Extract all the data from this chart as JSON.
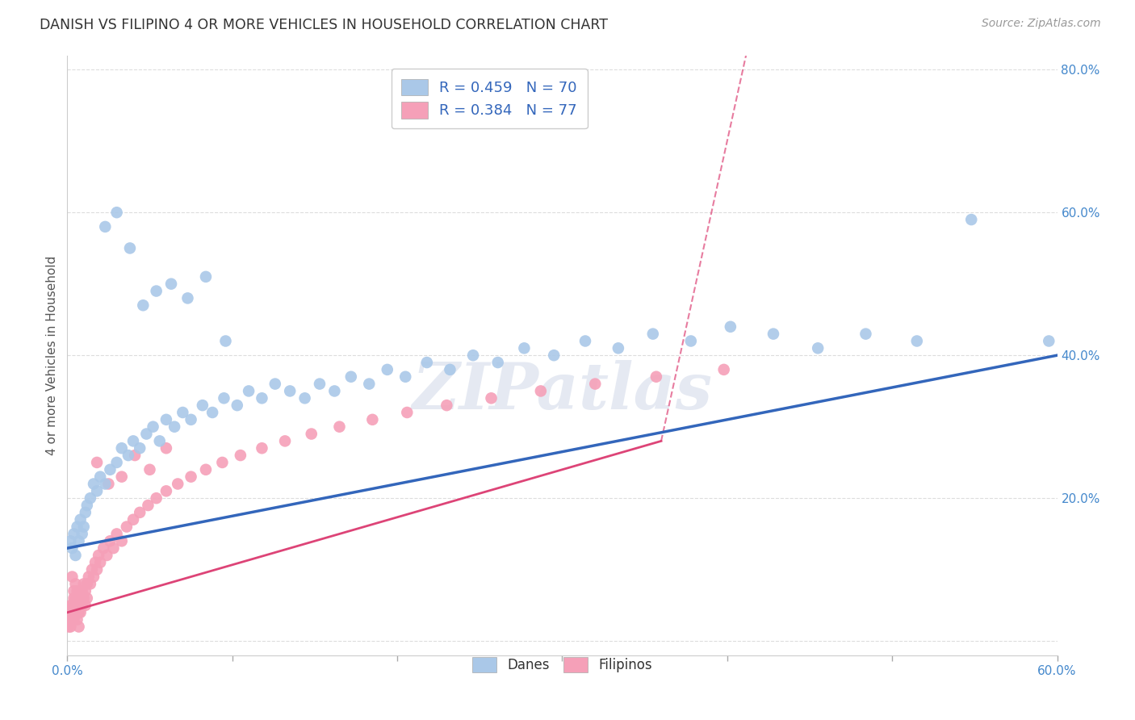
{
  "title": "DANISH VS FILIPINO 4 OR MORE VEHICLES IN HOUSEHOLD CORRELATION CHART",
  "source": "Source: ZipAtlas.com",
  "ylabel": "4 or more Vehicles in Household",
  "x_min": 0.0,
  "x_max": 0.6,
  "y_min": -0.02,
  "y_max": 0.82,
  "yticks": [
    0.0,
    0.2,
    0.4,
    0.6,
    0.8
  ],
  "ytick_labels": [
    "",
    "20.0%",
    "40.0%",
    "60.0%",
    "80.0%"
  ],
  "legend_blue_r": "R = 0.459",
  "legend_blue_n": "N = 70",
  "legend_pink_r": "R = 0.384",
  "legend_pink_n": "N = 77",
  "blue_scatter_color": "#aac8e8",
  "blue_line_color": "#3366bb",
  "pink_scatter_color": "#f5a0b8",
  "pink_line_color": "#dd4477",
  "watermark": "ZIPatlas",
  "danes_x": [
    0.002,
    0.003,
    0.004,
    0.005,
    0.006,
    0.007,
    0.008,
    0.009,
    0.01,
    0.011,
    0.012,
    0.014,
    0.016,
    0.018,
    0.02,
    0.023,
    0.026,
    0.03,
    0.033,
    0.037,
    0.04,
    0.044,
    0.048,
    0.052,
    0.056,
    0.06,
    0.065,
    0.07,
    0.075,
    0.082,
    0.088,
    0.095,
    0.103,
    0.11,
    0.118,
    0.126,
    0.135,
    0.144,
    0.153,
    0.162,
    0.172,
    0.183,
    0.194,
    0.205,
    0.218,
    0.232,
    0.246,
    0.261,
    0.277,
    0.295,
    0.314,
    0.334,
    0.355,
    0.378,
    0.402,
    0.428,
    0.455,
    0.484,
    0.515,
    0.548,
    0.023,
    0.03,
    0.038,
    0.046,
    0.054,
    0.063,
    0.073,
    0.084,
    0.096,
    0.595
  ],
  "danes_y": [
    0.14,
    0.13,
    0.15,
    0.12,
    0.16,
    0.14,
    0.17,
    0.15,
    0.16,
    0.18,
    0.19,
    0.2,
    0.22,
    0.21,
    0.23,
    0.22,
    0.24,
    0.25,
    0.27,
    0.26,
    0.28,
    0.27,
    0.29,
    0.3,
    0.28,
    0.31,
    0.3,
    0.32,
    0.31,
    0.33,
    0.32,
    0.34,
    0.33,
    0.35,
    0.34,
    0.36,
    0.35,
    0.34,
    0.36,
    0.35,
    0.37,
    0.36,
    0.38,
    0.37,
    0.39,
    0.38,
    0.4,
    0.39,
    0.41,
    0.4,
    0.42,
    0.41,
    0.43,
    0.42,
    0.44,
    0.43,
    0.41,
    0.43,
    0.42,
    0.59,
    0.58,
    0.6,
    0.55,
    0.47,
    0.49,
    0.5,
    0.48,
    0.51,
    0.42,
    0.42
  ],
  "filipinos_x": [
    0.001,
    0.001,
    0.002,
    0.002,
    0.002,
    0.003,
    0.003,
    0.003,
    0.004,
    0.004,
    0.004,
    0.005,
    0.005,
    0.005,
    0.006,
    0.006,
    0.006,
    0.007,
    0.007,
    0.007,
    0.008,
    0.008,
    0.009,
    0.009,
    0.01,
    0.01,
    0.011,
    0.011,
    0.012,
    0.012,
    0.013,
    0.014,
    0.015,
    0.016,
    0.017,
    0.018,
    0.019,
    0.02,
    0.022,
    0.024,
    0.026,
    0.028,
    0.03,
    0.033,
    0.036,
    0.04,
    0.044,
    0.049,
    0.054,
    0.06,
    0.067,
    0.075,
    0.084,
    0.094,
    0.105,
    0.118,
    0.132,
    0.148,
    0.165,
    0.185,
    0.206,
    0.23,
    0.257,
    0.287,
    0.32,
    0.357,
    0.398,
    0.018,
    0.025,
    0.033,
    0.041,
    0.05,
    0.06,
    0.003,
    0.004,
    0.005,
    0.007
  ],
  "filipinos_y": [
    0.02,
    0.04,
    0.03,
    0.05,
    0.02,
    0.04,
    0.03,
    0.05,
    0.04,
    0.06,
    0.03,
    0.05,
    0.04,
    0.06,
    0.05,
    0.03,
    0.07,
    0.04,
    0.06,
    0.05,
    0.06,
    0.04,
    0.07,
    0.05,
    0.06,
    0.08,
    0.07,
    0.05,
    0.08,
    0.06,
    0.09,
    0.08,
    0.1,
    0.09,
    0.11,
    0.1,
    0.12,
    0.11,
    0.13,
    0.12,
    0.14,
    0.13,
    0.15,
    0.14,
    0.16,
    0.17,
    0.18,
    0.19,
    0.2,
    0.21,
    0.22,
    0.23,
    0.24,
    0.25,
    0.26,
    0.27,
    0.28,
    0.29,
    0.3,
    0.31,
    0.32,
    0.33,
    0.34,
    0.35,
    0.36,
    0.37,
    0.38,
    0.25,
    0.22,
    0.23,
    0.26,
    0.24,
    0.27,
    0.09,
    0.07,
    0.08,
    0.02
  ],
  "danes_line_x0": 0.0,
  "danes_line_x1": 0.6,
  "danes_line_y0": 0.13,
  "danes_line_y1": 0.4,
  "filipinos_line_x0": 0.0,
  "filipinos_line_x1": 0.36,
  "filipinos_line_y0": 0.04,
  "filipinos_line_y1": 0.28
}
